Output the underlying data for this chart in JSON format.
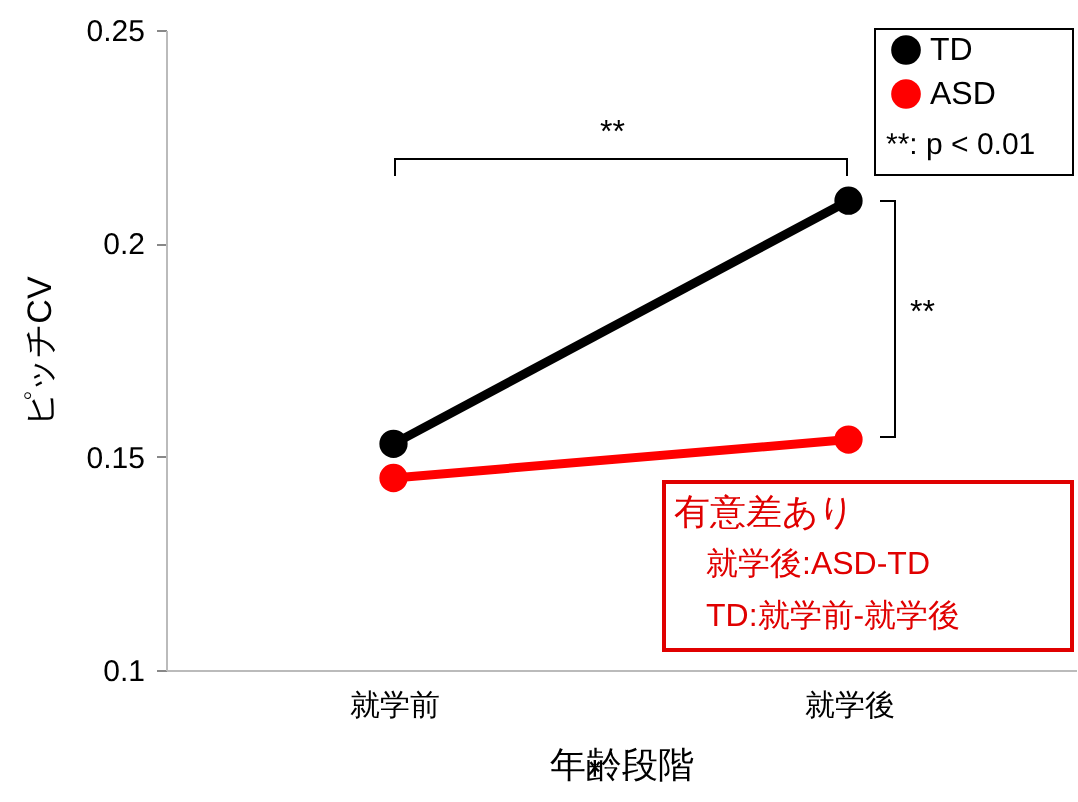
{
  "chart_data": {
    "type": "line",
    "xlabel": "年齢段階",
    "ylabel": "ピッチCV",
    "categories": [
      "就学前",
      "就学後"
    ],
    "series": [
      {
        "name": "TD",
        "color": "#000000",
        "values": [
          0.153,
          0.21
        ]
      },
      {
        "name": "ASD",
        "color": "#ff0000",
        "values": [
          0.145,
          0.154
        ]
      }
    ],
    "ylim": [
      0.1,
      0.25
    ],
    "yticks": [
      0.1,
      0.15,
      0.2,
      0.25
    ],
    "grid": false,
    "legend": "top right",
    "marker": "circle",
    "annotations": [
      "**",
      "**",
      "**: p < 0.01",
      "有意差あり",
      "就学後:ASD-TD",
      "TD:就学前-就学後"
    ]
  }
}
